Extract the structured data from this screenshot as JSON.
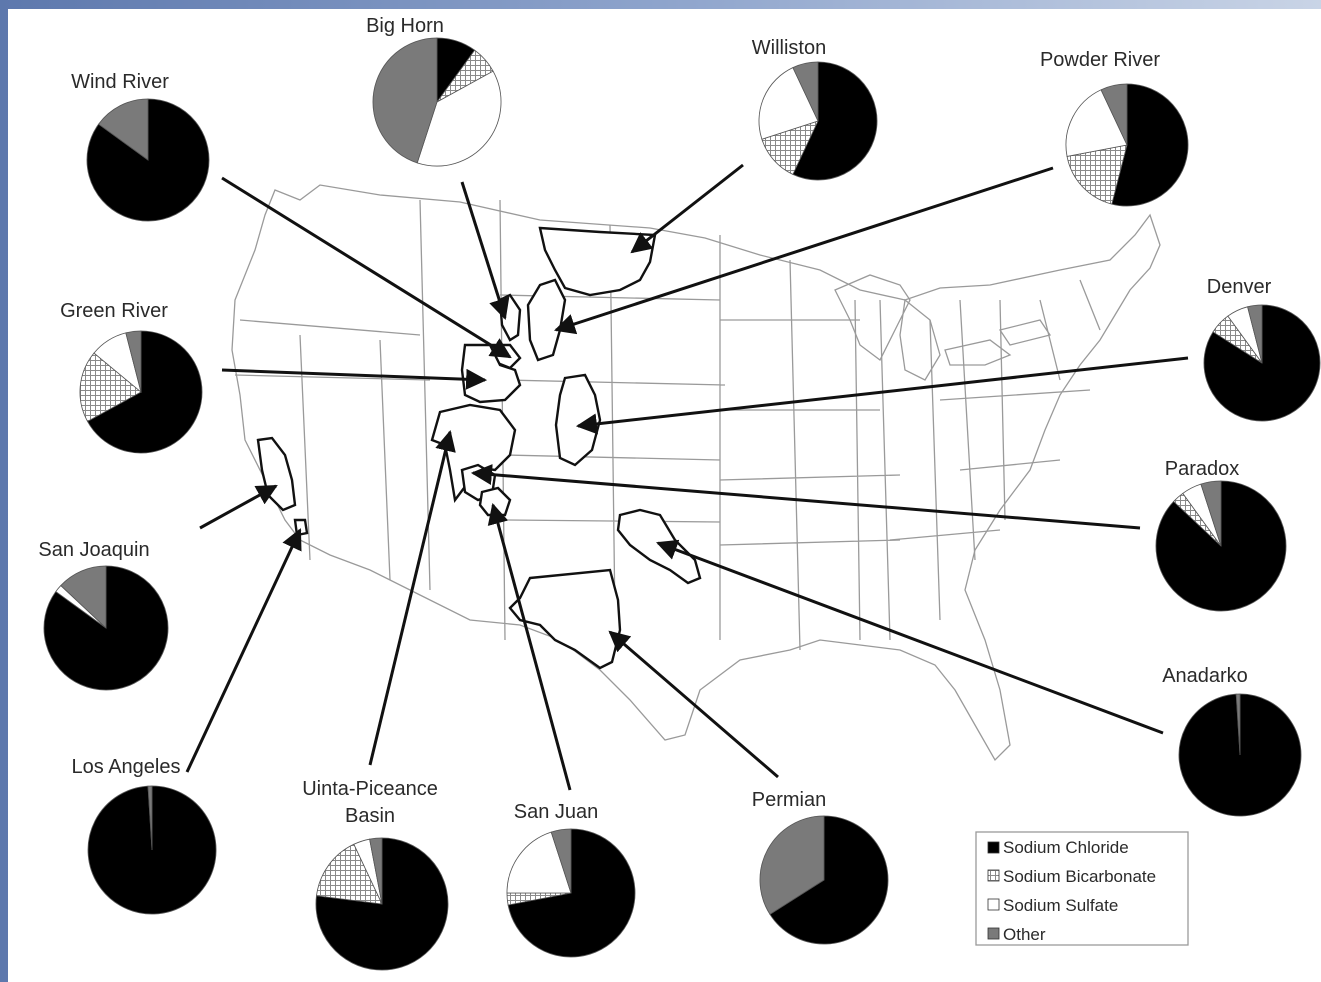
{
  "legend": {
    "items": [
      {
        "label": "Sodium Chloride",
        "key": "chloride"
      },
      {
        "label": "Sodium Bicarbonate",
        "key": "bicarbonate"
      },
      {
        "label": "Sodium Sulfate",
        "key": "sulfate"
      },
      {
        "label": "Other",
        "key": "other"
      }
    ]
  },
  "colors": {
    "chloride": "#000000",
    "bicarbonate": "pattern-grid",
    "sulfate": "#ffffff",
    "other": "#7a7a7a",
    "outline": "#111111"
  },
  "basins": [
    {
      "id": "wind-river",
      "label": [
        "Wind River"
      ],
      "chloride": 0.85,
      "bicarbonate": 0.0,
      "sulfate": 0.0,
      "other": 0.15
    },
    {
      "id": "big-horn",
      "label": [
        "Big Horn"
      ],
      "chloride": 0.1,
      "bicarbonate": 0.07,
      "sulfate": 0.38,
      "other": 0.45
    },
    {
      "id": "williston",
      "label": [
        "Williston"
      ],
      "chloride": 0.57,
      "bicarbonate": 0.13,
      "sulfate": 0.23,
      "other": 0.07
    },
    {
      "id": "powder-river",
      "label": [
        "Powder River"
      ],
      "chloride": 0.54,
      "bicarbonate": 0.18,
      "sulfate": 0.21,
      "other": 0.07
    },
    {
      "id": "green-river",
      "label": [
        "Green River"
      ],
      "chloride": 0.67,
      "bicarbonate": 0.19,
      "sulfate": 0.1,
      "other": 0.04
    },
    {
      "id": "denver",
      "label": [
        "Denver"
      ],
      "chloride": 0.84,
      "bicarbonate": 0.06,
      "sulfate": 0.06,
      "other": 0.04
    },
    {
      "id": "san-joaquin",
      "label": [
        "San Joaquin"
      ],
      "chloride": 0.85,
      "bicarbonate": 0.0,
      "sulfate": 0.02,
      "other": 0.13
    },
    {
      "id": "paradox",
      "label": [
        "Paradox"
      ],
      "chloride": 0.87,
      "bicarbonate": 0.03,
      "sulfate": 0.05,
      "other": 0.05
    },
    {
      "id": "anadarko",
      "label": [
        "Anadarko"
      ],
      "chloride": 0.99,
      "bicarbonate": 0.0,
      "sulfate": 0.0,
      "other": 0.01
    },
    {
      "id": "los-angeles",
      "label": [
        "Los Angeles"
      ],
      "chloride": 0.99,
      "bicarbonate": 0.0,
      "sulfate": 0.0,
      "other": 0.01
    },
    {
      "id": "uinta-piceance",
      "label": [
        "Uinta-Piceance",
        "Basin"
      ],
      "chloride": 0.77,
      "bicarbonate": 0.16,
      "sulfate": 0.04,
      "other": 0.03
    },
    {
      "id": "san-juan",
      "label": [
        "San Juan"
      ],
      "chloride": 0.72,
      "bicarbonate": 0.03,
      "sulfate": 0.2,
      "other": 0.05
    },
    {
      "id": "permian",
      "label": [
        "Permian"
      ],
      "chloride": 0.66,
      "bicarbonate": 0.0,
      "sulfate": 0.0,
      "other": 0.34
    }
  ]
}
